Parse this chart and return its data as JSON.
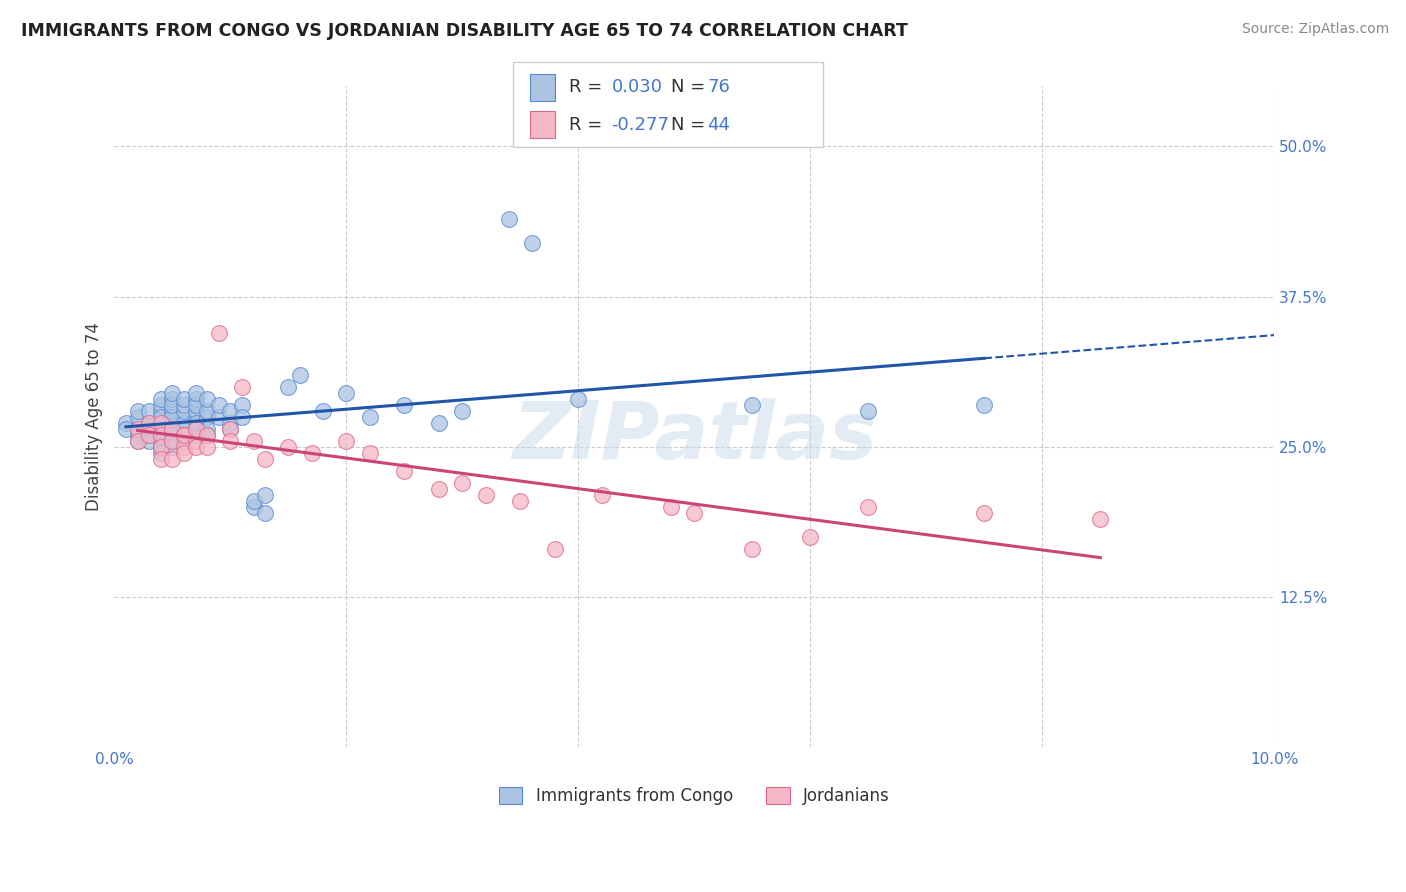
{
  "title": "IMMIGRANTS FROM CONGO VS JORDANIAN DISABILITY AGE 65 TO 74 CORRELATION CHART",
  "source": "Source: ZipAtlas.com",
  "ylabel": "Disability Age 65 to 74",
  "xlim": [
    0.0,
    0.1
  ],
  "ylim": [
    0.0,
    0.55
  ],
  "xtick_vals": [
    0.0,
    0.02,
    0.04,
    0.06,
    0.08,
    0.1
  ],
  "xticklabels": [
    "0.0%",
    "",
    "",
    "",
    "",
    "10.0%"
  ],
  "yticks_right": [
    0.125,
    0.25,
    0.375,
    0.5
  ],
  "ytick_labels_right": [
    "12.5%",
    "25.0%",
    "37.5%",
    "50.0%"
  ],
  "congo_R": 0.03,
  "congo_N": 76,
  "jordan_R": -0.277,
  "jordan_N": 44,
  "legend_label_congo": "Immigrants from Congo",
  "legend_label_jordan": "Jordanians",
  "congo_fill_color": "#aac4e2",
  "congo_edge_color": "#5588cc",
  "jordan_fill_color": "#f5b8c8",
  "jordan_edge_color": "#dd6688",
  "congo_line_color": "#2255aa",
  "jordan_line_color": "#cc4477",
  "watermark": "ZIPatlas",
  "blue_text_color": "#4477cc",
  "congo_points_x": [
    0.001,
    0.001,
    0.002,
    0.002,
    0.002,
    0.002,
    0.003,
    0.003,
    0.003,
    0.003,
    0.003,
    0.004,
    0.004,
    0.004,
    0.004,
    0.004,
    0.004,
    0.004,
    0.004,
    0.004,
    0.004,
    0.005,
    0.005,
    0.005,
    0.005,
    0.005,
    0.005,
    0.005,
    0.005,
    0.005,
    0.005,
    0.006,
    0.006,
    0.006,
    0.006,
    0.006,
    0.006,
    0.006,
    0.007,
    0.007,
    0.007,
    0.007,
    0.007,
    0.007,
    0.007,
    0.007,
    0.008,
    0.008,
    0.008,
    0.008,
    0.008,
    0.009,
    0.009,
    0.01,
    0.01,
    0.01,
    0.011,
    0.011,
    0.012,
    0.012,
    0.013,
    0.013,
    0.015,
    0.016,
    0.018,
    0.02,
    0.022,
    0.025,
    0.028,
    0.03,
    0.034,
    0.036,
    0.04,
    0.055,
    0.065,
    0.075
  ],
  "congo_points_y": [
    0.27,
    0.265,
    0.275,
    0.26,
    0.28,
    0.255,
    0.265,
    0.27,
    0.28,
    0.26,
    0.255,
    0.27,
    0.265,
    0.28,
    0.285,
    0.26,
    0.255,
    0.25,
    0.275,
    0.29,
    0.245,
    0.27,
    0.265,
    0.28,
    0.29,
    0.26,
    0.255,
    0.275,
    0.285,
    0.25,
    0.295,
    0.27,
    0.265,
    0.28,
    0.26,
    0.285,
    0.255,
    0.29,
    0.275,
    0.265,
    0.28,
    0.29,
    0.26,
    0.27,
    0.285,
    0.295,
    0.275,
    0.28,
    0.265,
    0.29,
    0.26,
    0.275,
    0.285,
    0.27,
    0.28,
    0.265,
    0.285,
    0.275,
    0.2,
    0.205,
    0.21,
    0.195,
    0.3,
    0.31,
    0.28,
    0.295,
    0.275,
    0.285,
    0.27,
    0.28,
    0.44,
    0.42,
    0.29,
    0.285,
    0.28,
    0.285
  ],
  "jordan_points_x": [
    0.002,
    0.002,
    0.003,
    0.003,
    0.004,
    0.004,
    0.004,
    0.004,
    0.005,
    0.005,
    0.005,
    0.006,
    0.006,
    0.006,
    0.006,
    0.007,
    0.007,
    0.007,
    0.008,
    0.008,
    0.009,
    0.01,
    0.01,
    0.011,
    0.012,
    0.013,
    0.015,
    0.017,
    0.02,
    0.022,
    0.025,
    0.028,
    0.03,
    0.032,
    0.035,
    0.038,
    0.042,
    0.048,
    0.05,
    0.055,
    0.06,
    0.065,
    0.075,
    0.085
  ],
  "jordan_points_y": [
    0.265,
    0.255,
    0.27,
    0.26,
    0.27,
    0.26,
    0.25,
    0.24,
    0.265,
    0.255,
    0.24,
    0.26,
    0.25,
    0.26,
    0.245,
    0.255,
    0.265,
    0.25,
    0.26,
    0.25,
    0.345,
    0.265,
    0.255,
    0.3,
    0.255,
    0.24,
    0.25,
    0.245,
    0.255,
    0.245,
    0.23,
    0.215,
    0.22,
    0.21,
    0.205,
    0.165,
    0.21,
    0.2,
    0.195,
    0.165,
    0.175,
    0.2,
    0.195,
    0.19
  ]
}
